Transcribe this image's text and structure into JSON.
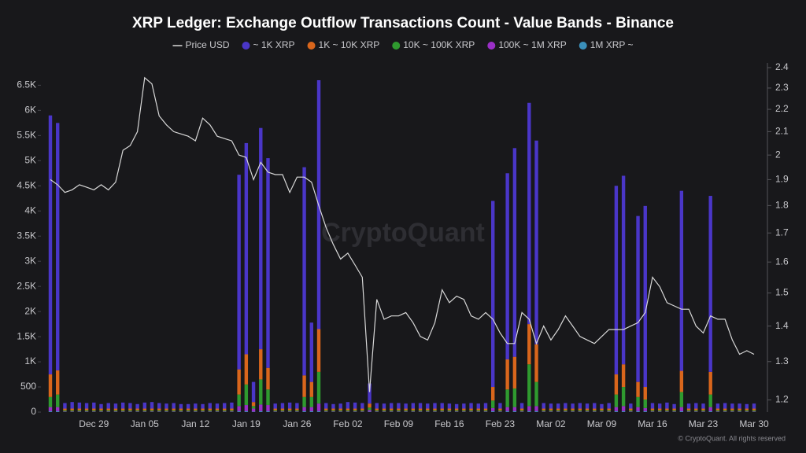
{
  "chart_data": {
    "type": "bar",
    "stacked": true,
    "title": "XRP Ledger: Exchange Outflow Transactions Count - Value Bands - Binance",
    "watermark": "CryptoQuant",
    "footer": "© CryptoQuant. All rights reserved",
    "categories": [
      null,
      null,
      null,
      null,
      null,
      null,
      "Dec 29",
      null,
      null,
      null,
      null,
      null,
      null,
      "Jan 05",
      null,
      null,
      null,
      null,
      null,
      null,
      "Jan 12",
      null,
      null,
      null,
      null,
      null,
      null,
      "Jan 19",
      null,
      null,
      null,
      null,
      null,
      null,
      "Jan 26",
      null,
      null,
      null,
      null,
      null,
      null,
      "Feb 02",
      null,
      null,
      null,
      null,
      null,
      null,
      "Feb 09",
      null,
      null,
      null,
      null,
      null,
      null,
      "Feb 16",
      null,
      null,
      null,
      null,
      null,
      null,
      "Feb 23",
      null,
      null,
      null,
      null,
      null,
      null,
      "Mar 02",
      null,
      null,
      null,
      null,
      null,
      null,
      "Mar 09",
      null,
      null,
      null,
      null,
      null,
      null,
      "Mar 16",
      null,
      null,
      null,
      null,
      null,
      null,
      "Mar 23",
      null,
      null,
      null,
      null,
      null,
      null,
      "Mar 30"
    ],
    "ylim": [
      0,
      6850
    ],
    "yticks": [
      0,
      500,
      {
        "value": 1000,
        "label": "1K"
      },
      {
        "value": 1500,
        "label": "1.5K"
      },
      {
        "value": 2000,
        "label": "2K"
      },
      {
        "value": 2500,
        "label": "2.5K"
      },
      {
        "value": 3000,
        "label": "3K"
      },
      {
        "value": 3500,
        "label": "3.5K"
      },
      {
        "value": 4000,
        "label": "4K"
      },
      {
        "value": 4500,
        "label": "4.5K"
      },
      {
        "value": 5000,
        "label": "5K"
      },
      {
        "value": 5500,
        "label": "5.5K"
      },
      {
        "value": 6000,
        "label": "6K"
      },
      {
        "value": 6500,
        "label": "6.5K"
      }
    ],
    "y2lim": [
      1.17,
      2.4
    ],
    "y2_log_scale": true,
    "y2ticks": [
      1.2,
      1.3,
      1.4,
      1.5,
      1.6,
      1.7,
      1.8,
      1.9,
      2,
      2.1,
      2.2,
      2.3,
      2.4
    ],
    "grid": false,
    "series": [
      {
        "name": "~ 1K XRP",
        "color": "#4a36c8",
        "values": [
          5150,
          4920,
          110,
          130,
          120,
          110,
          120,
          90,
          110,
          100,
          120,
          110,
          90,
          120,
          130,
          110,
          100,
          110,
          90,
          90,
          100,
          90,
          110,
          100,
          110,
          120,
          3870,
          4200,
          400,
          4400,
          4170,
          100,
          110,
          120,
          110,
          4140,
          1180,
          4950,
          110,
          90,
          100,
          130,
          120,
          110,
          400,
          110,
          100,
          110,
          110,
          100,
          110,
          110,
          100,
          110,
          110,
          100,
          90,
          100,
          110,
          100,
          110,
          3700,
          110,
          3700,
          4150,
          110,
          4400,
          4050,
          110,
          100,
          100,
          110,
          100,
          110,
          100,
          110,
          90,
          110,
          3750,
          3750,
          100,
          3300,
          3600,
          110,
          100,
          120,
          90,
          3580,
          100,
          110,
          100,
          3500,
          100,
          110,
          100,
          100,
          90,
          100
        ]
      },
      {
        "name": "1K ~ 10K XRP",
        "color": "#d9661c",
        "values": [
          450,
          480,
          35,
          35,
          35,
          35,
          35,
          35,
          35,
          35,
          35,
          35,
          35,
          35,
          35,
          35,
          35,
          35,
          35,
          35,
          35,
          35,
          35,
          35,
          35,
          35,
          500,
          600,
          80,
          600,
          430,
          35,
          35,
          35,
          35,
          430,
          300,
          850,
          35,
          35,
          35,
          35,
          35,
          35,
          80,
          35,
          35,
          35,
          35,
          35,
          35,
          35,
          35,
          35,
          35,
          35,
          35,
          35,
          35,
          35,
          35,
          270,
          35,
          600,
          630,
          35,
          800,
          750,
          35,
          35,
          35,
          35,
          35,
          35,
          35,
          35,
          35,
          35,
          400,
          450,
          35,
          300,
          250,
          35,
          35,
          35,
          35,
          420,
          35,
          35,
          35,
          450,
          35,
          35,
          35,
          35,
          35,
          35
        ]
      },
      {
        "name": "10K ~ 100K XRP",
        "color": "#2f9a2f",
        "values": [
          200,
          250,
          22,
          22,
          22,
          22,
          22,
          22,
          22,
          22,
          22,
          22,
          22,
          22,
          22,
          22,
          22,
          22,
          22,
          22,
          22,
          22,
          22,
          22,
          22,
          22,
          230,
          410,
          50,
          500,
          310,
          22,
          22,
          22,
          22,
          200,
          200,
          630,
          22,
          22,
          22,
          22,
          22,
          22,
          50,
          22,
          22,
          22,
          22,
          22,
          22,
          22,
          22,
          22,
          22,
          22,
          22,
          22,
          22,
          22,
          22,
          150,
          22,
          350,
          370,
          22,
          830,
          480,
          22,
          22,
          22,
          22,
          22,
          22,
          22,
          22,
          22,
          22,
          250,
          380,
          22,
          200,
          170,
          22,
          22,
          22,
          22,
          300,
          22,
          22,
          22,
          250,
          22,
          22,
          22,
          22,
          22,
          22
        ]
      },
      {
        "name": "100K ~ 1M XRP",
        "color": "#9a2fc6",
        "values": [
          80,
          80,
          10,
          10,
          10,
          10,
          10,
          10,
          10,
          10,
          10,
          10,
          10,
          10,
          10,
          10,
          10,
          10,
          10,
          10,
          10,
          10,
          10,
          10,
          10,
          10,
          100,
          120,
          60,
          130,
          120,
          10,
          10,
          10,
          10,
          80,
          80,
          150,
          10,
          10,
          10,
          10,
          10,
          10,
          30,
          10,
          10,
          10,
          10,
          10,
          10,
          10,
          10,
          10,
          10,
          10,
          10,
          10,
          10,
          10,
          10,
          60,
          10,
          80,
          80,
          10,
          100,
          100,
          10,
          10,
          10,
          10,
          10,
          10,
          10,
          10,
          10,
          10,
          80,
          100,
          10,
          80,
          60,
          10,
          10,
          10,
          10,
          80,
          10,
          10,
          10,
          80,
          10,
          10,
          10,
          10,
          10,
          10
        ]
      },
      {
        "name": "1M XRP ~",
        "color": "#3a8fba",
        "values": [
          20,
          20,
          3,
          3,
          3,
          3,
          3,
          3,
          3,
          3,
          3,
          3,
          3,
          3,
          3,
          3,
          3,
          3,
          3,
          3,
          3,
          3,
          3,
          3,
          3,
          3,
          20,
          20,
          10,
          20,
          20,
          3,
          3,
          3,
          3,
          20,
          20,
          20,
          3,
          3,
          3,
          3,
          3,
          3,
          10,
          3,
          3,
          3,
          3,
          3,
          3,
          3,
          3,
          3,
          3,
          3,
          3,
          3,
          3,
          3,
          3,
          20,
          3,
          20,
          20,
          3,
          20,
          20,
          3,
          3,
          3,
          3,
          3,
          3,
          3,
          3,
          3,
          3,
          20,
          20,
          3,
          20,
          20,
          3,
          3,
          3,
          3,
          20,
          3,
          3,
          3,
          20,
          3,
          3,
          3,
          3,
          3,
          3
        ]
      },
      {
        "name": "Price USD",
        "type": "line",
        "axis": "y2",
        "color": "#d8d8d8",
        "values": [
          1.9,
          1.88,
          1.85,
          1.86,
          1.88,
          1.87,
          1.86,
          1.88,
          1.86,
          1.89,
          2.02,
          2.04,
          2.1,
          2.35,
          2.32,
          2.17,
          2.13,
          2.1,
          2.09,
          2.08,
          2.06,
          2.16,
          2.13,
          2.08,
          2.07,
          2.06,
          2.0,
          1.99,
          1.9,
          1.97,
          1.93,
          1.92,
          1.92,
          1.85,
          1.91,
          1.91,
          1.89,
          1.8,
          1.72,
          1.66,
          1.61,
          1.63,
          1.59,
          1.55,
          1.22,
          1.48,
          1.42,
          1.43,
          1.43,
          1.44,
          1.41,
          1.37,
          1.36,
          1.41,
          1.51,
          1.47,
          1.49,
          1.48,
          1.43,
          1.42,
          1.44,
          1.42,
          1.38,
          1.35,
          1.35,
          1.44,
          1.42,
          1.35,
          1.4,
          1.36,
          1.39,
          1.43,
          1.4,
          1.37,
          1.36,
          1.35,
          1.37,
          1.39,
          1.39,
          1.39,
          1.4,
          1.41,
          1.44,
          1.55,
          1.52,
          1.47,
          1.46,
          1.45,
          1.45,
          1.4,
          1.38,
          1.43,
          1.42,
          1.42,
          1.36,
          1.32,
          1.33,
          1.32
        ]
      }
    ]
  }
}
